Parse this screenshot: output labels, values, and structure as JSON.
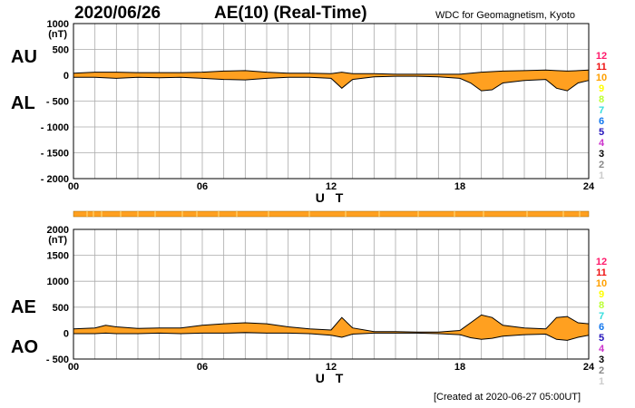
{
  "header": {
    "date": "2020/06/26",
    "title": "AE(10) (Real-Time)",
    "source": "WDC for Geomagnetism, Kyoto"
  },
  "footer": {
    "created": "[Created at 2020-06-27 05:00UT]"
  },
  "colors": {
    "fill": "#ffa020",
    "line": "#000000",
    "grid": "#aaaaaa",
    "bar": "#ffa020",
    "bar_tick": "#ffe080"
  },
  "legend": {
    "numbers": [
      "12",
      "11",
      "10",
      "9",
      "8",
      "7",
      "6",
      "5",
      "4",
      "3",
      "2",
      "1"
    ],
    "colors": [
      "#ff1a6b",
      "#ee1111",
      "#ffa000",
      "#ffff00",
      "#bbff33",
      "#33dddd",
      "#1177ee",
      "#2211bb",
      "#cc33cc",
      "#000000",
      "#888888",
      "#cccccc"
    ]
  },
  "chart_data": [
    {
      "type": "area",
      "name": "AU/AL",
      "labels": {
        "upper": "AU",
        "lower": "AL"
      },
      "unit": "(nT)",
      "xlabel": "U T",
      "xlim": [
        0,
        24
      ],
      "x_ticks": [
        "00",
        "06",
        "12",
        "18",
        "24"
      ],
      "ylim": [
        -2000,
        1000
      ],
      "y_ticks": [
        "1000",
        "500",
        "0",
        "- 500",
        "- 1000",
        "- 1500",
        "- 2000"
      ],
      "x": [
        0,
        1,
        2,
        3,
        4,
        5,
        6,
        7,
        8,
        9,
        10,
        11,
        12,
        12.5,
        13,
        14,
        15,
        16,
        17,
        18,
        18.5,
        19,
        19.5,
        20,
        21,
        22,
        22.5,
        23,
        23.5,
        24
      ],
      "upper": [
        40,
        60,
        60,
        50,
        50,
        50,
        60,
        80,
        90,
        60,
        40,
        40,
        30,
        60,
        30,
        30,
        20,
        20,
        20,
        20,
        40,
        60,
        70,
        80,
        90,
        100,
        90,
        80,
        90,
        100
      ],
      "lower": [
        -40,
        -40,
        -60,
        -40,
        -50,
        -40,
        -60,
        -80,
        -90,
        -60,
        -40,
        -40,
        -60,
        -250,
        -80,
        -30,
        -20,
        -20,
        -30,
        -60,
        -150,
        -300,
        -280,
        -150,
        -100,
        -80,
        -250,
        -300,
        -150,
        -100
      ]
    },
    {
      "type": "area",
      "name": "AE/AO",
      "labels": {
        "upper": "AE",
        "lower": "AO"
      },
      "unit": "(nT)",
      "xlabel": "U T",
      "xlim": [
        0,
        24
      ],
      "x_ticks": [
        "00",
        "06",
        "12",
        "18",
        "24"
      ],
      "ylim": [
        -500,
        2000
      ],
      "y_ticks": [
        "2000",
        "1500",
        "1000",
        "500",
        "0",
        "- 500"
      ],
      "x": [
        0,
        1,
        1.5,
        2,
        3,
        4,
        5,
        6,
        7,
        8,
        9,
        10,
        11,
        12,
        12.5,
        13,
        14,
        15,
        16,
        17,
        18,
        18.5,
        19,
        19.5,
        20,
        21,
        22,
        22.5,
        23,
        23.5,
        24
      ],
      "upper": [
        80,
        100,
        150,
        120,
        90,
        100,
        100,
        150,
        180,
        200,
        180,
        120,
        80,
        60,
        300,
        100,
        30,
        30,
        20,
        20,
        50,
        200,
        350,
        300,
        150,
        100,
        80,
        300,
        320,
        200,
        180
      ],
      "lower": [
        -10,
        -10,
        0,
        -10,
        -10,
        0,
        -10,
        0,
        0,
        10,
        0,
        0,
        -10,
        -40,
        -80,
        -20,
        0,
        0,
        0,
        -10,
        -30,
        -90,
        -120,
        -100,
        -60,
        -30,
        -20,
        -120,
        -140,
        -80,
        -40
      ]
    }
  ]
}
